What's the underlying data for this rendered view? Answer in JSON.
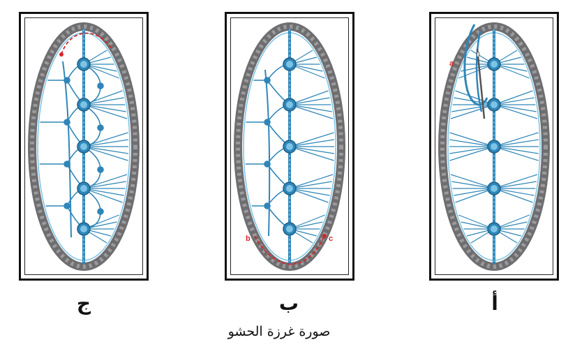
{
  "caption": "صورة غرزة الحشو",
  "panels": [
    {
      "id": "c",
      "label": "ج",
      "markers": []
    },
    {
      "id": "b",
      "label": "ب",
      "markers": [
        "b",
        "c"
      ]
    },
    {
      "id": "a",
      "label": "أ",
      "markers": [
        "a"
      ]
    }
  ],
  "colors": {
    "border_cord": "#6e6e70",
    "thread": "#2f86b8",
    "thread_light": "#7cc3e6",
    "marker": "#d4272b"
  }
}
